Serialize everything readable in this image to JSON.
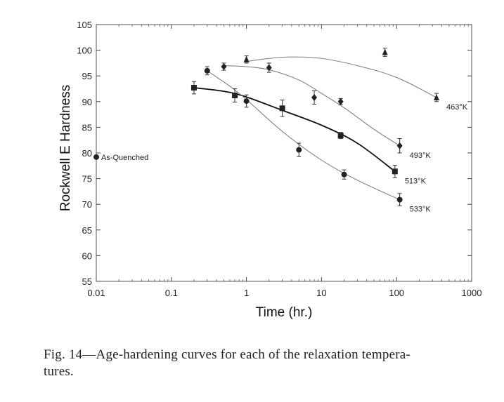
{
  "chart_data": {
    "type": "scatter",
    "title": "",
    "xlabel": "Time (hr.)",
    "ylabel": "Rockwell E Hardness",
    "xscale": "log",
    "xlim": [
      0.01,
      1000
    ],
    "ylim": [
      55,
      105
    ],
    "xticks": [
      0.01,
      0.1,
      1,
      10,
      100,
      1000
    ],
    "xtick_labels": [
      "0.01",
      "0.1",
      "1",
      "10",
      "100",
      "1000"
    ],
    "yticks": [
      55,
      60,
      65,
      70,
      75,
      80,
      85,
      90,
      95,
      100,
      105
    ],
    "ytick_labels": [
      "55",
      "60",
      "65",
      "70",
      "75",
      "80",
      "85",
      "90",
      "95",
      "100",
      "105"
    ],
    "annotations": [
      {
        "text": "As-Quenched",
        "x": 0.01,
        "y": 79.2,
        "marker": "circle"
      }
    ],
    "series": [
      {
        "name": "463°K",
        "marker": "triangle",
        "line": "thin",
        "points": [
          {
            "x": 1.0,
            "y": 98.2,
            "err": 0.7
          },
          {
            "x": 70,
            "y": 99.6,
            "err": 0.8
          },
          {
            "x": 340,
            "y": 90.8,
            "err": 0.8
          }
        ],
        "curve": [
          [
            1.0,
            97.8
          ],
          [
            2,
            98.4
          ],
          [
            4,
            98.7
          ],
          [
            10,
            98.4
          ],
          [
            30,
            97.0
          ],
          [
            100,
            94.7
          ],
          [
            340,
            90.8
          ]
        ]
      },
      {
        "name": "493°K",
        "marker": "diamond",
        "line": "thin",
        "points": [
          {
            "x": 0.5,
            "y": 96.8,
            "err": 0.7
          },
          {
            "x": 2,
            "y": 96.6,
            "err": 0.9
          },
          {
            "x": 8,
            "y": 90.8,
            "err": 1.3
          },
          {
            "x": 18,
            "y": 90.0,
            "err": 0.6
          },
          {
            "x": 110,
            "y": 81.4,
            "err": 1.4
          }
        ],
        "curve": [
          [
            0.5,
            97.0
          ],
          [
            1,
            96.8
          ],
          [
            2,
            96.2
          ],
          [
            5,
            94.2
          ],
          [
            10,
            91.6
          ],
          [
            20,
            88.8
          ],
          [
            50,
            84.6
          ],
          [
            110,
            81.4
          ]
        ]
      },
      {
        "name": "513°K",
        "marker": "square",
        "line": "thick",
        "points": [
          {
            "x": 0.2,
            "y": 92.7,
            "err": 1.2
          },
          {
            "x": 0.7,
            "y": 91.2,
            "err": 1.3
          },
          {
            "x": 3,
            "y": 88.7,
            "err": 1.6
          },
          {
            "x": 18,
            "y": 83.4,
            "err": 0.6
          },
          {
            "x": 95,
            "y": 76.4,
            "err": 1.2
          }
        ],
        "curve": [
          [
            0.2,
            92.7
          ],
          [
            0.5,
            92.0
          ],
          [
            1,
            90.9
          ],
          [
            3,
            88.3
          ],
          [
            10,
            85.4
          ],
          [
            30,
            81.9
          ],
          [
            95,
            76.4
          ]
        ]
      },
      {
        "name": "533°K",
        "marker": "circle",
        "line": "thin",
        "points": [
          {
            "x": 0.3,
            "y": 96.0,
            "err": 0.8
          },
          {
            "x": 1.0,
            "y": 90.1,
            "err": 1.2
          },
          {
            "x": 5,
            "y": 80.6,
            "err": 1.3
          },
          {
            "x": 20,
            "y": 75.8,
            "err": 0.9
          },
          {
            "x": 110,
            "y": 70.9,
            "err": 1.2
          }
        ],
        "curve": [
          [
            0.3,
            96.0
          ],
          [
            0.6,
            93.0
          ],
          [
            1,
            90.4
          ],
          [
            3,
            84.2
          ],
          [
            10,
            78.6
          ],
          [
            30,
            74.7
          ],
          [
            110,
            70.9
          ]
        ]
      }
    ]
  },
  "caption": {
    "line1": "Fig. 14—Age-hardening curves for each of the relaxation tempera-",
    "line2": "tures."
  }
}
